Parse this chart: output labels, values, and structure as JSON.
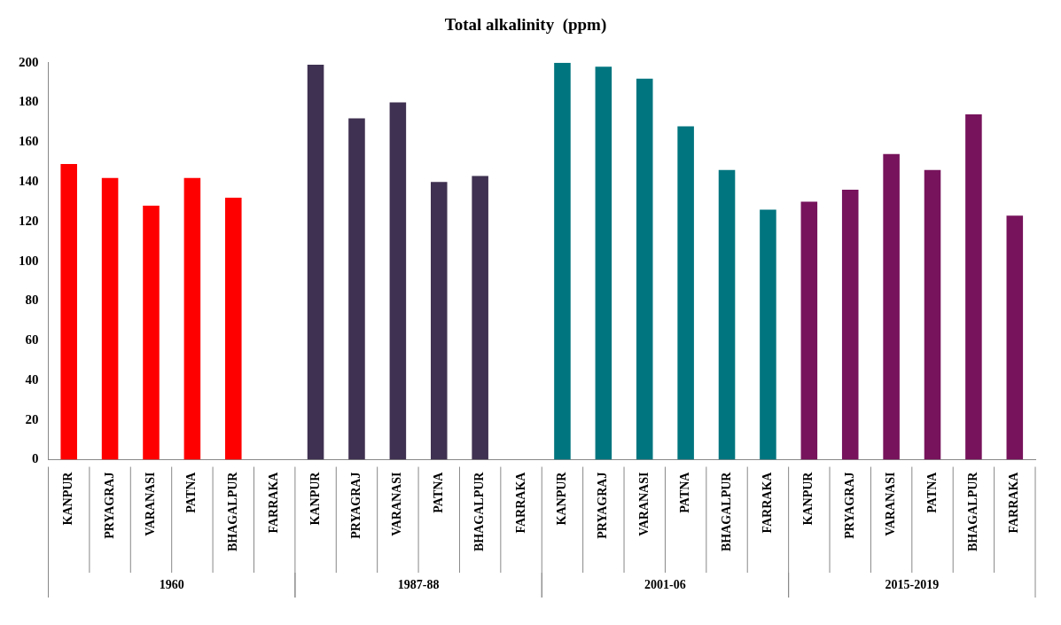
{
  "chart_data": {
    "type": "bar",
    "title": "Total alkalinity  (ppm)",
    "categories": [
      "KANPUR",
      "PRYAGRAJ",
      "VARANASI",
      "PATNA",
      "BHAGALPUR",
      "FARRAKA",
      "KANPUR",
      "PRYAGRAJ",
      "VARANASI",
      "PATNA",
      "BHAGALPUR",
      "FARRAKA",
      "KANPUR",
      "PRYAGRAJ",
      "VARANASI",
      "PATNA",
      "BHAGALPUR",
      "FARRAKA",
      "KANPUR",
      "PRYAGRAJ",
      "VARANASI",
      "PATNA",
      "BHAGALPUR",
      "FARRAKA"
    ],
    "values": [
      149,
      142,
      128,
      142,
      132,
      null,
      199,
      172,
      180,
      140,
      143,
      null,
      200,
      198,
      192,
      168,
      146,
      126,
      130,
      136,
      154,
      146,
      174,
      123
    ],
    "colors": [
      "#ff0000",
      "#ff0000",
      "#ff0000",
      "#ff0000",
      "#ff0000",
      "#ff0000",
      "#3f3151",
      "#3f3151",
      "#3f3151",
      "#3f3151",
      "#3f3151",
      "#3f3151",
      "#00757f",
      "#00757f",
      "#00757f",
      "#00757f",
      "#00757f",
      "#00757f",
      "#77135c",
      "#77135c",
      "#77135c",
      "#77135c",
      "#77135c",
      "#77135c"
    ],
    "annotations": [
      "1960",
      "1987-88",
      "2001-06",
      "2015-2019"
    ],
    "ylim": [
      0,
      200
    ],
    "yticks": [
      0,
      20,
      40,
      60,
      80,
      100,
      120,
      140,
      160,
      180,
      200
    ],
    "grid": false,
    "legend": false
  }
}
